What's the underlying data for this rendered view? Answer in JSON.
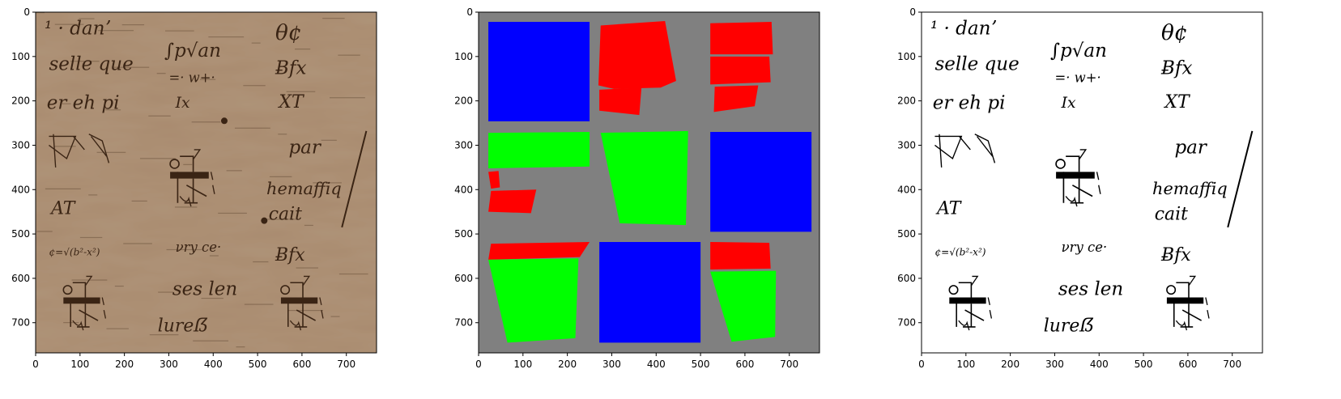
{
  "figure": {
    "panels": [
      {
        "id": "original",
        "title": "",
        "x_ticks": [
          "0",
          "100",
          "200",
          "300",
          "400",
          "500",
          "600",
          "700"
        ],
        "y_ticks": [
          "0",
          "100",
          "200",
          "300",
          "400",
          "500",
          "600",
          "700"
        ],
        "xlim": [
          0,
          768
        ],
        "ylim": [
          768,
          0
        ],
        "background": "#a98a6e",
        "ink": "#3a2414"
      },
      {
        "id": "segmentation-mask",
        "title": "",
        "x_ticks": [
          "0",
          "100",
          "200",
          "300",
          "400",
          "500",
          "600",
          "700"
        ],
        "y_ticks": [
          "0",
          "100",
          "200",
          "300",
          "400",
          "500",
          "600",
          "700"
        ],
        "xlim": [
          0,
          768
        ],
        "ylim": [
          768,
          0
        ],
        "background": "#808080",
        "class_colors": {
          "blue": "#0000ff",
          "red": "#ff0000",
          "green": "#00ff00"
        },
        "regions": [
          {
            "cls": "blue",
            "pts": [
              [
                22,
                22
              ],
              [
                250,
                22
              ],
              [
                250,
                246
              ],
              [
                22,
                246
              ]
            ]
          },
          {
            "cls": "red",
            "pts": [
              [
                275,
                30
              ],
              [
                420,
                20
              ],
              [
                445,
                155
              ],
              [
                410,
                170
              ],
              [
                305,
                173
              ],
              [
                270,
                165
              ]
            ]
          },
          {
            "cls": "red",
            "pts": [
              [
                272,
                175
              ],
              [
                367,
                170
              ],
              [
                362,
                232
              ],
              [
                272,
                222
              ]
            ]
          },
          {
            "cls": "red",
            "pts": [
              [
                522,
                25
              ],
              [
                660,
                22
              ],
              [
                663,
                95
              ],
              [
                522,
                95
              ]
            ]
          },
          {
            "cls": "red",
            "pts": [
              [
                522,
                100
              ],
              [
                655,
                100
              ],
              [
                658,
                158
              ],
              [
                522,
                163
              ]
            ]
          },
          {
            "cls": "red",
            "pts": [
              [
                532,
                168
              ],
              [
                630,
                165
              ],
              [
                622,
                212
              ],
              [
                530,
                225
              ]
            ]
          },
          {
            "cls": "green",
            "pts": [
              [
                22,
                272
              ],
              [
                250,
                270
              ],
              [
                250,
                348
              ],
              [
                22,
                352
              ]
            ]
          },
          {
            "cls": "red",
            "pts": [
              [
                22,
                360
              ],
              [
                45,
                358
              ],
              [
                48,
                395
              ],
              [
                28,
                398
              ]
            ]
          },
          {
            "cls": "red",
            "pts": [
              [
                28,
                403
              ],
              [
                130,
                400
              ],
              [
                118,
                453
              ],
              [
                22,
                450
              ]
            ]
          },
          {
            "cls": "green",
            "pts": [
              [
                275,
                272
              ],
              [
                472,
                268
              ],
              [
                467,
                480
              ],
              [
                318,
                476
              ]
            ]
          },
          {
            "cls": "blue",
            "pts": [
              [
                522,
                270
              ],
              [
                750,
                270
              ],
              [
                750,
                495
              ],
              [
                522,
                495
              ]
            ]
          },
          {
            "cls": "red",
            "pts": [
              [
                28,
                522
              ],
              [
                250,
                518
              ],
              [
                228,
                552
              ],
              [
                22,
                558
              ]
            ]
          },
          {
            "cls": "green",
            "pts": [
              [
                22,
                558
              ],
              [
                225,
                555
              ],
              [
                218,
                735
              ],
              [
                65,
                745
              ]
            ]
          },
          {
            "cls": "blue",
            "pts": [
              [
                272,
                518
              ],
              [
                500,
                518
              ],
              [
                500,
                745
              ],
              [
                272,
                745
              ]
            ]
          },
          {
            "cls": "red",
            "pts": [
              [
                522,
                518
              ],
              [
                655,
                520
              ],
              [
                658,
                578
              ],
              [
                522,
                580
              ]
            ]
          },
          {
            "cls": "green",
            "pts": [
              [
                522,
                585
              ],
              [
                670,
                583
              ],
              [
                668,
                732
              ],
              [
                570,
                743
              ]
            ]
          }
        ]
      },
      {
        "id": "binarized",
        "title": "",
        "x_ticks": [
          "0",
          "100",
          "200",
          "300",
          "400",
          "500",
          "600",
          "700"
        ],
        "y_ticks": [
          "0",
          "100",
          "200",
          "300",
          "400",
          "500",
          "600",
          "700"
        ],
        "xlim": [
          0,
          768
        ],
        "ylim": [
          768,
          0
        ],
        "background": "#ffffff",
        "ink": "#000000"
      }
    ],
    "handwriting": [
      {
        "t": "¹ · danʼ",
        "x": 20,
        "y": 50,
        "s": 42
      },
      {
        "t": "θ¢",
        "x": 540,
        "y": 62,
        "s": 48
      },
      {
        "t": "selle que",
        "x": 30,
        "y": 130,
        "s": 42
      },
      {
        "t": "∫p√an",
        "x": 290,
        "y": 100,
        "s": 42
      },
      {
        "t": "=· w+·",
        "x": 300,
        "y": 158,
        "s": 30
      },
      {
        "t": "er  eh  pi",
        "x": 25,
        "y": 218,
        "s": 42
      },
      {
        "t": "Ix",
        "x": 315,
        "y": 215,
        "s": 34
      },
      {
        "t": "Ƀfx",
        "x": 540,
        "y": 140,
        "s": 42
      },
      {
        "t": "XT",
        "x": 548,
        "y": 215,
        "s": 40
      },
      {
        "t": "par",
        "x": 570,
        "y": 318,
        "s": 42
      },
      {
        "t": "hemaffiq",
        "x": 520,
        "y": 410,
        "s": 38
      },
      {
        "t": "cait",
        "x": 525,
        "y": 468,
        "s": 40
      },
      {
        "t": "AT",
        "x": 35,
        "y": 455,
        "s": 40
      },
      {
        "t": "¢=√(b²-x²)",
        "x": 30,
        "y": 548,
        "s": 22
      },
      {
        "t": "νry ce·",
        "x": 315,
        "y": 540,
        "s": 30
      },
      {
        "t": "Ƀfx",
        "x": 540,
        "y": 560,
        "s": 40
      },
      {
        "t": "ses  len",
        "x": 308,
        "y": 638,
        "s": 42
      },
      {
        "t": "lureẞ",
        "x": 275,
        "y": 720,
        "s": 40
      }
    ],
    "diagrams": [
      {
        "x": 295,
        "y": 320,
        "s": 1.0
      },
      {
        "x": 55,
        "y": 605,
        "s": 0.95
      },
      {
        "x": 545,
        "y": 605,
        "s": 0.95
      }
    ],
    "sketch": {
      "x": 30,
      "y": 280
    }
  }
}
